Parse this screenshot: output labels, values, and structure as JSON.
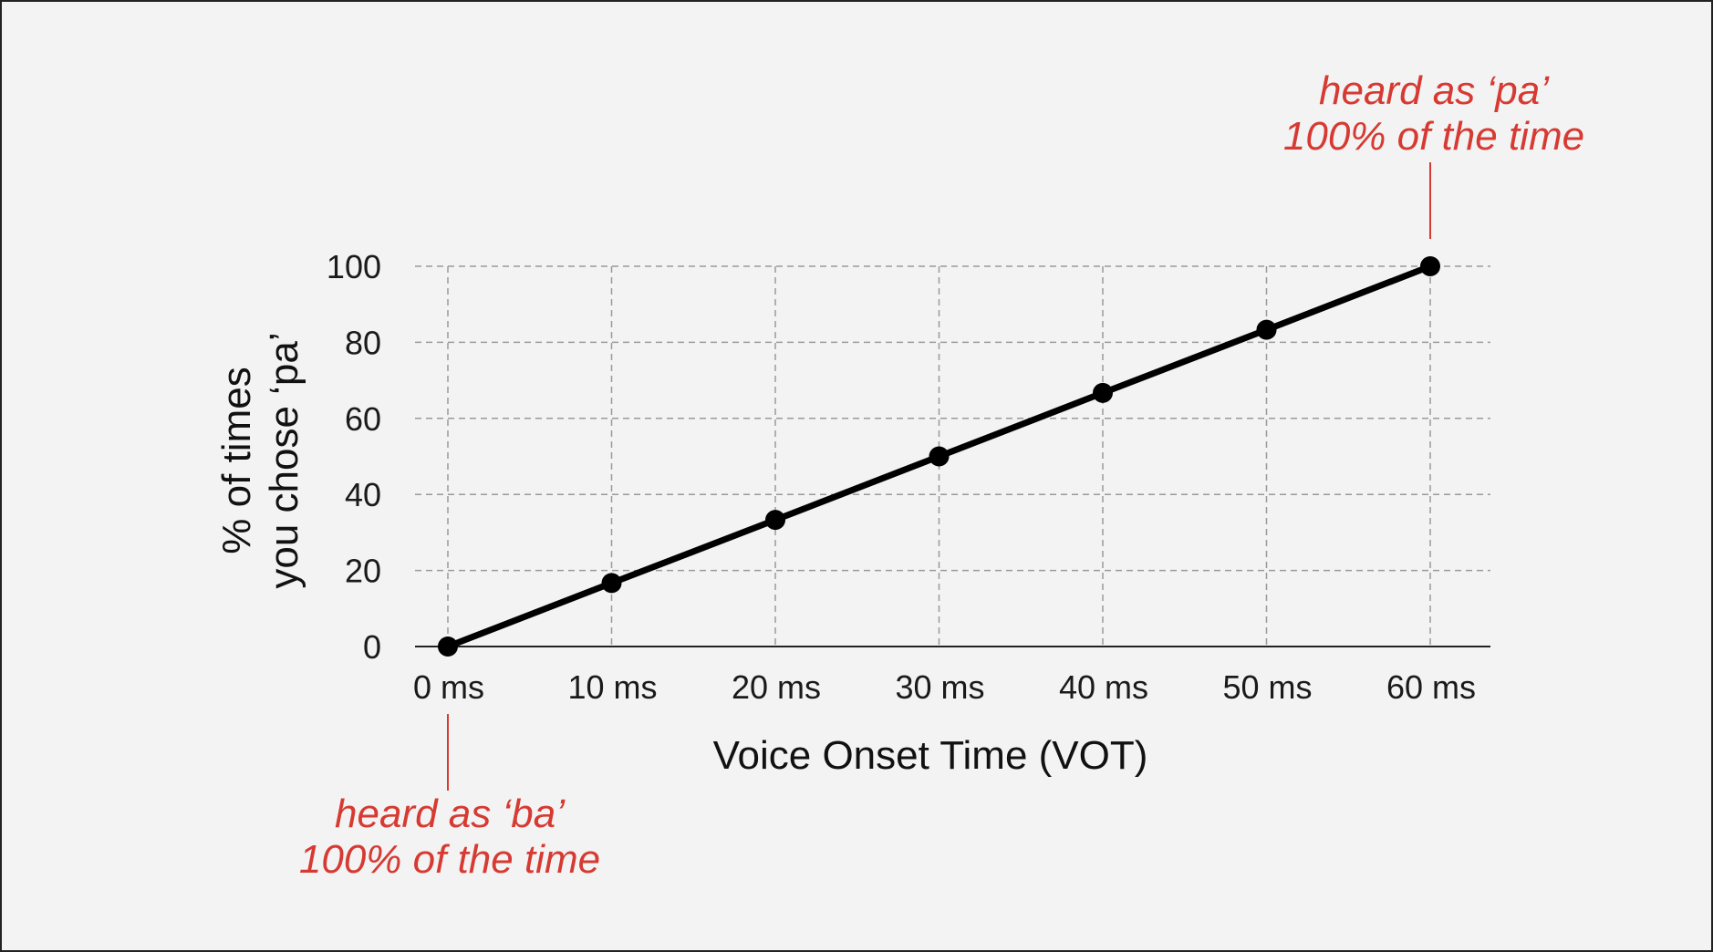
{
  "chart_data": {
    "type": "line",
    "x": [
      0,
      10,
      20,
      30,
      40,
      50,
      60
    ],
    "x_tick_labels": [
      "0 ms",
      "10 ms",
      "20 ms",
      "30 ms",
      "40 ms",
      "50 ms",
      "60 ms"
    ],
    "series": [
      {
        "values": [
          0,
          16.7,
          33.3,
          50,
          66.7,
          83.3,
          100
        ]
      }
    ],
    "y_ticks": [
      "0",
      "20",
      "40",
      "60",
      "80",
      "100"
    ],
    "xlabel": "Voice Onset Time (VOT)",
    "ylabel_line1": "% of times",
    "ylabel_line2": "you chose ‘pa’",
    "xlim": [
      0,
      60
    ],
    "ylim": [
      0,
      100
    ],
    "grid": true,
    "annotations": [
      {
        "line1": "heard as ‘pa’",
        "line2": "100% of the time",
        "x": 60,
        "y": 100,
        "placement": "above"
      },
      {
        "line1": "heard as ‘ba’",
        "line2": "100% of the time",
        "x": 0,
        "y": 0,
        "placement": "below"
      }
    ],
    "colors": {
      "line": "#000000",
      "grid": "#9a9a9a",
      "annotation": "#d63a32"
    }
  }
}
